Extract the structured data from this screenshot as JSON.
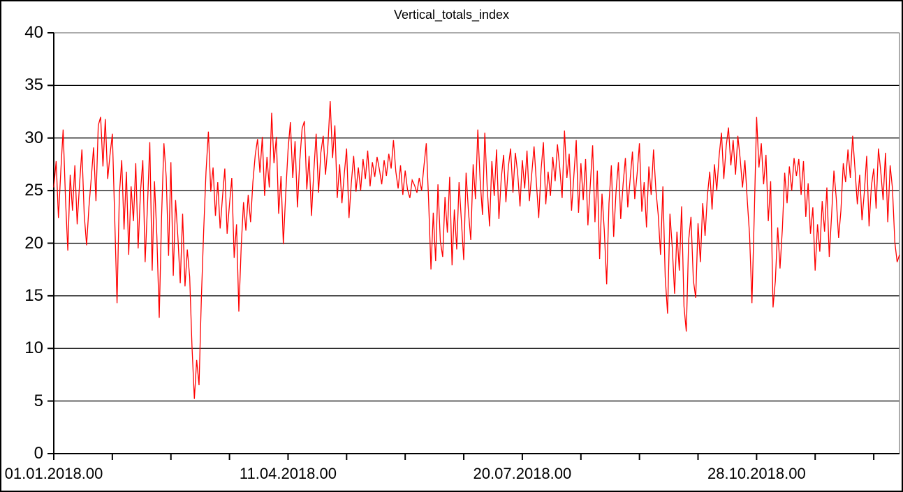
{
  "chart_data": {
    "type": "line",
    "title": "Vertical_totals_index",
    "legend_position": "none",
    "grid": "horizontal",
    "estimation_note": "series values estimated visually from plot at ~daily resolution",
    "y_axis": {
      "min": 0,
      "max": 40,
      "tick_interval": 5,
      "tick_labels": [
        "0",
        "5",
        "10",
        "15",
        "20",
        "25",
        "30",
        "35",
        "40"
      ]
    },
    "x_axis": {
      "unit": "date (dd.mm.yyyy.hh)",
      "range_days": [
        0,
        361
      ],
      "minor_tick_interval_days": 25,
      "tick_label_days": [
        0,
        100,
        200,
        300
      ],
      "tick_labels": [
        "01.01.2018.00",
        "11.04.2018.00",
        "20.07.2018.00",
        "28.10.2018.00"
      ]
    },
    "colors": {
      "line": "#ff0000",
      "grid": "#000000",
      "axis": "#000000",
      "frame_top_right": "#909090",
      "background": "#ffffff",
      "text": "#000000"
    },
    "series": [
      {
        "name": "Vertical_totals_index",
        "color": "#ff0000",
        "values": [
          25.3,
          27.8,
          22.4,
          26.9,
          30.8,
          24.2,
          19.3,
          26.5,
          23.1,
          27.4,
          21.8,
          25.6,
          28.9,
          22.7,
          19.8,
          23.4,
          26.2,
          29.1,
          24.0,
          31.2,
          32.0,
          27.3,
          31.8,
          26.1,
          28.4,
          30.4,
          22.5,
          14.3,
          24.6,
          27.9,
          21.3,
          26.8,
          18.9,
          25.4,
          22.1,
          27.6,
          19.5,
          24.8,
          27.9,
          18.2,
          23.6,
          29.6,
          17.4,
          25.9,
          20.7,
          12.9,
          22.4,
          29.5,
          26.3,
          18.8,
          27.7,
          16.9,
          24.1,
          20.5,
          16.2,
          22.8,
          15.9,
          19.4,
          16.8,
          10.2,
          5.2,
          8.9,
          6.5,
          14.7,
          21.3,
          26.8,
          30.6,
          24.9,
          27.2,
          22.6,
          25.8,
          21.4,
          24.3,
          27.1,
          20.9,
          23.7,
          26.2,
          18.6,
          21.8,
          13.5,
          19.7,
          23.9,
          21.2,
          24.6,
          22.0,
          25.8,
          28.4,
          29.9,
          26.7,
          30.1,
          24.5,
          28.2,
          25.3,
          32.4,
          27.6,
          30.1,
          22.8,
          26.4,
          19.9,
          24.7,
          28.9,
          31.5,
          26.2,
          29.7,
          23.4,
          27.8,
          30.9,
          31.6,
          25.1,
          28.3,
          22.6,
          26.9,
          30.4,
          24.8,
          28.6,
          30.2,
          26.5,
          29.3,
          33.5,
          28.1,
          31.2,
          24.3,
          27.5,
          23.8,
          26.6,
          29.0,
          22.4,
          25.7,
          28.3,
          24.9,
          27.2,
          25.0,
          28.0,
          26.1,
          28.8,
          25.4,
          27.7,
          26.3,
          28.2,
          27.0,
          25.6,
          27.9,
          26.4,
          28.5,
          27.1,
          29.8,
          26.8,
          25.2,
          27.4,
          24.6,
          26.9,
          25.1,
          24.3,
          26.0,
          25.5,
          24.8,
          26.2,
          25.0,
          27.3,
          29.5,
          24.1,
          17.5,
          22.9,
          18.3,
          25.6,
          20.2,
          18.7,
          24.4,
          21.0,
          26.3,
          17.9,
          23.2,
          19.4,
          25.8,
          22.1,
          18.4,
          26.7,
          23.0,
          20.3,
          27.5,
          24.2,
          30.8,
          26.0,
          22.7,
          30.5,
          25.3,
          21.6,
          27.8,
          24.5,
          28.9,
          22.3,
          26.1,
          28.4,
          23.9,
          27.2,
          29.0,
          24.8,
          28.6,
          26.7,
          23.5,
          27.9,
          25.2,
          28.8,
          24.0,
          26.5,
          29.2,
          25.8,
          22.4,
          27.0,
          29.6,
          23.7,
          26.8,
          24.5,
          28.2,
          25.9,
          29.4,
          27.1,
          24.3,
          30.7,
          26.2,
          28.5,
          23.1,
          26.4,
          29.8,
          22.9,
          27.6,
          24.1,
          28.0,
          21.7,
          25.5,
          29.3,
          22.0,
          26.9,
          18.5,
          24.7,
          21.2,
          16.1,
          23.8,
          27.4,
          20.6,
          24.9,
          27.7,
          22.3,
          25.6,
          28.1,
          23.4,
          26.0,
          28.7,
          24.2,
          26.6,
          29.5,
          23.0,
          25.8,
          21.5,
          27.3,
          24.6,
          28.9,
          25.1,
          22.7,
          18.9,
          25.4,
          16.8,
          13.3,
          22.8,
          19.6,
          15.2,
          21.1,
          17.4,
          23.5,
          14.0,
          11.6,
          20.3,
          22.5,
          16.5,
          14.8,
          21.9,
          18.2,
          23.8,
          20.7,
          24.5,
          26.8,
          23.2,
          27.5,
          25.0,
          28.3,
          30.5,
          26.1,
          29.2,
          31.0,
          27.4,
          29.8,
          26.5,
          30.2,
          28.0,
          25.3,
          27.9,
          24.1,
          20.8,
          14.3,
          22.6,
          32.0,
          27.2,
          29.5,
          25.6,
          28.4,
          22.1,
          25.9,
          13.9,
          16.4,
          21.5,
          17.6,
          21.4,
          26.7,
          23.8,
          27.3,
          25.0,
          28.1,
          26.4,
          28.0,
          24.6,
          27.8,
          22.5,
          25.7,
          20.9,
          23.4,
          17.4,
          21.8,
          19.2,
          24.0,
          21.1,
          25.3,
          18.7,
          22.6,
          26.9,
          24.3,
          20.5,
          23.1,
          27.6,
          25.8,
          28.9,
          26.2,
          30.2,
          27.0,
          23.7,
          26.5,
          22.2,
          24.9,
          28.3,
          21.6,
          25.4,
          27.1,
          23.3,
          29.0,
          26.8,
          24.1,
          28.6,
          22.0,
          27.4,
          25.2,
          20.1,
          18.2,
          18.9
        ]
      }
    ]
  }
}
